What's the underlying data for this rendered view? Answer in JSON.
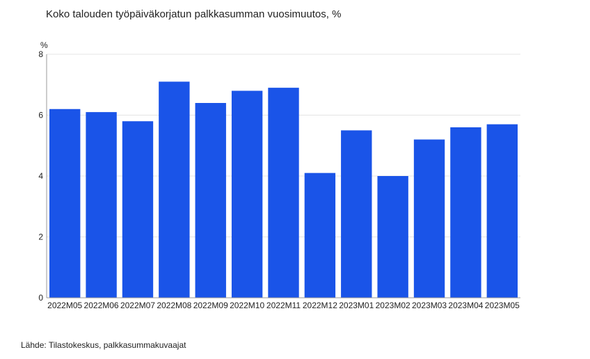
{
  "page": {
    "title": "Koko talouden työpäiväkorjatun palkkasumman vuosimuutos, %",
    "source": "Lähde: Tilastokeskus, palkkasummakuvaajat"
  },
  "colors": {
    "bar": "#1a54e8",
    "grid": "#e4e4e4",
    "axis": "#9a9a9a",
    "text": "#222222"
  },
  "chart_data": {
    "type": "bar",
    "title": "Koko talouden työpäiväkorjatun palkkasumman vuosimuutos, %",
    "ylabel": "%",
    "xlabel": "",
    "ylim": [
      0,
      8
    ],
    "yticks": [
      0,
      2,
      4,
      6,
      8
    ],
    "grid": true,
    "legend": "none",
    "categories": [
      "2022M05",
      "2022M06",
      "2022M07",
      "2022M08",
      "2022M09",
      "2022M10",
      "2022M11",
      "2022M12",
      "2023M01",
      "2023M02",
      "2023M03",
      "2023M04",
      "2023M05"
    ],
    "values": [
      6.2,
      6.1,
      5.8,
      7.1,
      6.4,
      6.8,
      6.9,
      4.1,
      5.5,
      4.0,
      5.2,
      5.6,
      5.7
    ]
  }
}
